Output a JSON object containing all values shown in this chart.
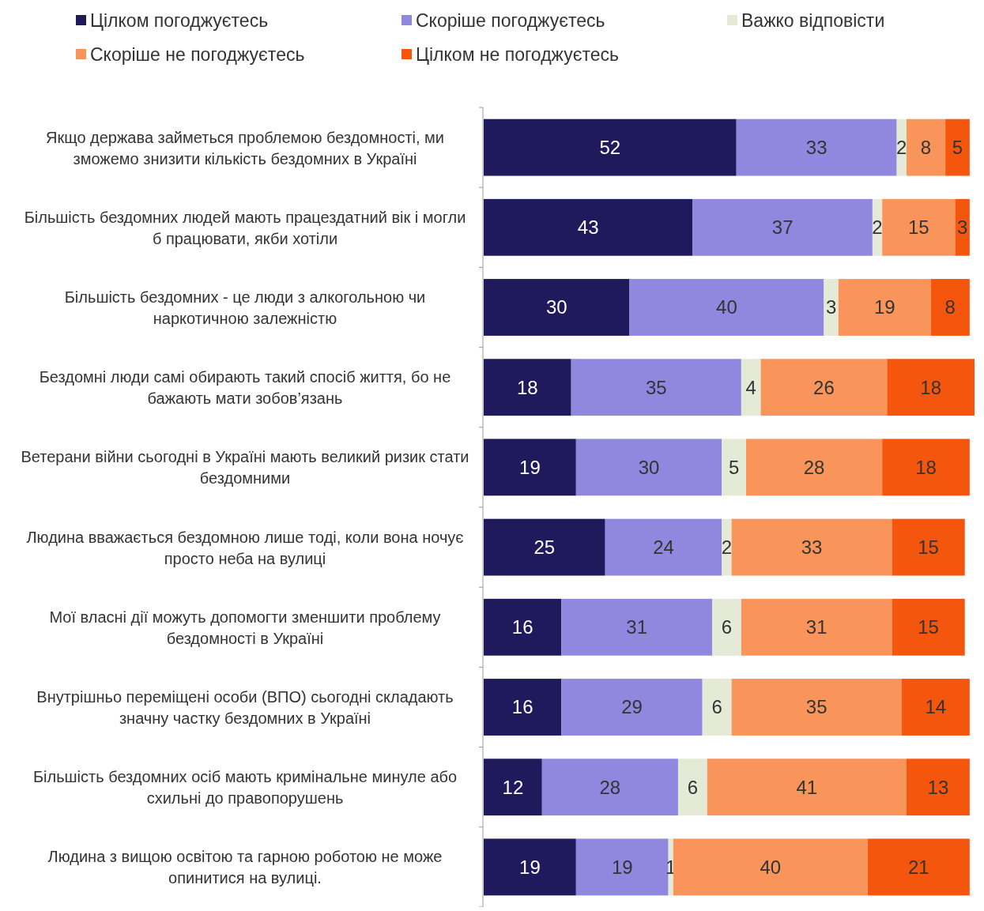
{
  "chart_data": {
    "type": "bar",
    "orientation": "horizontal",
    "stacked": true,
    "data_labels": true,
    "legend": "top left",
    "categories": [
      "Якщо держава займеться проблемою бездомності, ми зможемо знизити кількість бездомних в Україні",
      "Більшість бездомних людей мають працездатний вік і могли б працювати, якби хотіли",
      "Більшість бездомних - це люди з алкогольною чи наркотичною залежністю",
      "Бездомні люди самі обирають такий спосіб життя, бо не бажають мати зобов’язань",
      "Ветерани війни сьогодні в Україні мають великий ризик стати бездомними",
      "Людина вважається бездомною лише тоді, коли вона ночує просто неба на вулиці",
      "Мої власні дії можуть допомогти зменшити проблему бездомності в Україні",
      "Внутрішньо переміщені особи (ВПО) сьогодні складають значну частку бездомних в Україні",
      "Більшість бездомних осіб мають кримінальне минуле або схильні до правопорушень",
      "Людина з вищою освітою та гарною роботою не може опинитися на вулиці."
    ],
    "series": [
      {
        "name": "Цілком погоджуєтесь",
        "color": "#1f1a5c",
        "values": [
          52,
          43,
          30,
          18,
          19,
          25,
          16,
          16,
          12,
          19
        ]
      },
      {
        "name": "Скоріше погоджуєтесь",
        "color": "#8f88de",
        "values": [
          33,
          37,
          40,
          35,
          30,
          24,
          31,
          29,
          28,
          19
        ]
      },
      {
        "name": "Важко відповісти",
        "color": "#e4ead6",
        "values": [
          2,
          2,
          3,
          4,
          5,
          2,
          6,
          6,
          6,
          1
        ]
      },
      {
        "name": "Скоріше не погоджуєтесь",
        "color": "#f9955a",
        "values": [
          8,
          15,
          19,
          26,
          28,
          33,
          31,
          35,
          41,
          40
        ]
      },
      {
        "name": "Цілком не погоджуєтесь",
        "color": "#f5560e",
        "values": [
          5,
          3,
          8,
          18,
          18,
          15,
          15,
          14,
          13,
          21
        ]
      }
    ]
  }
}
